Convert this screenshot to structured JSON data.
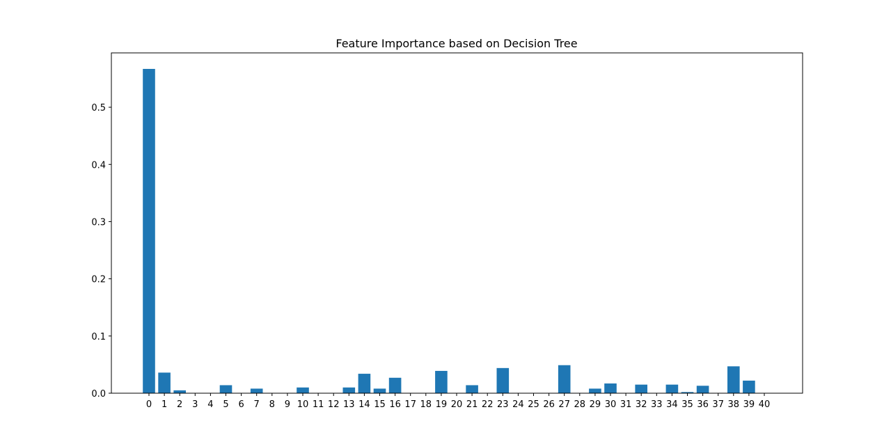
{
  "chart_data": {
    "type": "bar",
    "title": "Feature Importance based on Decision Tree",
    "xlabel": "",
    "ylabel": "",
    "categories": [
      "0",
      "1",
      "2",
      "3",
      "4",
      "5",
      "6",
      "7",
      "8",
      "9",
      "10",
      "11",
      "12",
      "13",
      "14",
      "15",
      "16",
      "17",
      "18",
      "19",
      "20",
      "21",
      "22",
      "23",
      "24",
      "25",
      "26",
      "27",
      "28",
      "29",
      "30",
      "31",
      "32",
      "33",
      "34",
      "35",
      "36",
      "37",
      "38",
      "39",
      "40"
    ],
    "values": [
      0.567,
      0.036,
      0.005,
      0.0,
      0.0,
      0.014,
      0.0,
      0.008,
      0.0,
      0.0,
      0.01,
      0.0,
      0.0,
      0.01,
      0.034,
      0.008,
      0.027,
      0.0,
      0.0,
      0.039,
      0.0,
      0.014,
      0.0,
      0.044,
      0.0,
      0.0,
      0.0,
      0.049,
      0.0,
      0.008,
      0.017,
      0.0,
      0.015,
      0.0,
      0.015,
      0.002,
      0.013,
      0.0,
      0.047,
      0.022,
      0.0
    ],
    "yticks": [
      "0.0",
      "0.1",
      "0.2",
      "0.3",
      "0.4",
      "0.5"
    ],
    "ylim": [
      0,
      0.595
    ],
    "bar_color": "#1f77b4",
    "grid": false,
    "legend": "none"
  }
}
